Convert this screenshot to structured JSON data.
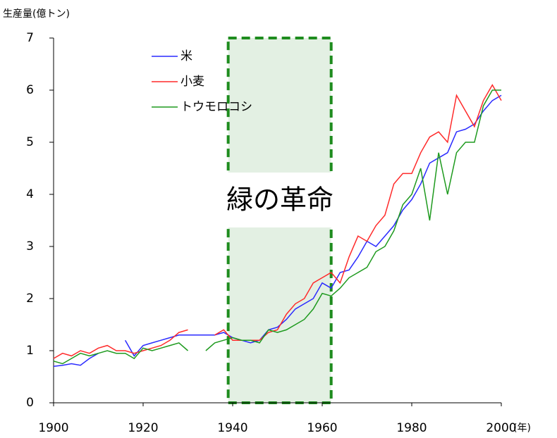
{
  "chart_data": {
    "type": "line",
    "y_label": "生産量(億トン)",
    "x_label": "(年)",
    "annotation": "緑の革命",
    "span": [
      1939,
      1962
    ],
    "span_color": "#1e8c1e",
    "x": [
      1900,
      1902,
      1904,
      1906,
      1908,
      1910,
      1912,
      1914,
      1916,
      1918,
      1920,
      1922,
      1924,
      1926,
      1928,
      1930,
      1932,
      1934,
      1936,
      1938,
      1940,
      1942,
      1944,
      1946,
      1948,
      1950,
      1952,
      1954,
      1956,
      1958,
      1960,
      1962,
      1964,
      1966,
      1968,
      1970,
      1972,
      1974,
      1976,
      1978,
      1980,
      1982,
      1984,
      1986,
      1988,
      1990,
      1992,
      1994,
      1996,
      1998,
      2000
    ],
    "series": [
      {
        "name": "米",
        "color": "#2a2aff",
        "values": [
          0.7,
          0.72,
          0.75,
          0.72,
          0.85,
          0.95,
          null,
          null,
          1.2,
          0.9,
          1.1,
          1.15,
          1.2,
          1.25,
          1.3,
          1.3,
          1.3,
          1.3,
          1.3,
          1.35,
          1.25,
          1.2,
          1.15,
          1.2,
          1.4,
          1.45,
          1.6,
          1.8,
          1.9,
          2.0,
          2.3,
          2.2,
          2.5,
          2.55,
          2.8,
          3.1,
          3.0,
          3.2,
          3.4,
          3.7,
          3.9,
          4.2,
          4.6,
          4.7,
          4.8,
          5.2,
          5.25,
          5.35,
          5.6,
          5.8,
          5.9
        ]
      },
      {
        "name": "小麦",
        "color": "#ff2a2a",
        "values": [
          0.85,
          0.95,
          0.9,
          1.0,
          0.95,
          1.05,
          1.1,
          1.0,
          1.0,
          0.95,
          1.0,
          1.05,
          1.1,
          1.2,
          1.35,
          1.4,
          null,
          null,
          1.3,
          1.4,
          1.2,
          1.2,
          1.2,
          1.2,
          1.35,
          1.4,
          1.7,
          1.9,
          2.0,
          2.3,
          2.4,
          2.5,
          2.3,
          2.8,
          3.2,
          3.1,
          3.4,
          3.6,
          4.2,
          4.4,
          4.4,
          4.8,
          5.1,
          5.2,
          5.0,
          5.9,
          5.6,
          5.3,
          5.8,
          6.1,
          5.8
        ]
      },
      {
        "name": "トウモロコシ",
        "color": "#1e9a1e",
        "values": [
          0.8,
          0.75,
          0.85,
          0.95,
          0.9,
          0.95,
          1.0,
          0.95,
          0.95,
          0.85,
          1.05,
          1.0,
          1.05,
          1.1,
          1.15,
          1.0,
          null,
          1.0,
          1.15,
          1.2,
          1.25,
          1.2,
          1.2,
          1.15,
          1.4,
          1.35,
          1.4,
          1.5,
          1.6,
          1.8,
          2.1,
          2.05,
          2.2,
          2.4,
          2.5,
          2.6,
          2.9,
          3.0,
          3.3,
          3.8,
          4.0,
          4.5,
          3.5,
          4.8,
          4.0,
          4.8,
          5.0,
          5.0,
          5.7,
          6.0,
          6.0
        ]
      }
    ],
    "xlim": [
      1900,
      2000
    ],
    "xticks": [
      1900,
      1920,
      1940,
      1960,
      1980,
      2000
    ],
    "ylim": [
      0,
      7
    ],
    "yticks": [
      0,
      1,
      2,
      3,
      4,
      5,
      6,
      7
    ],
    "grid": false
  }
}
